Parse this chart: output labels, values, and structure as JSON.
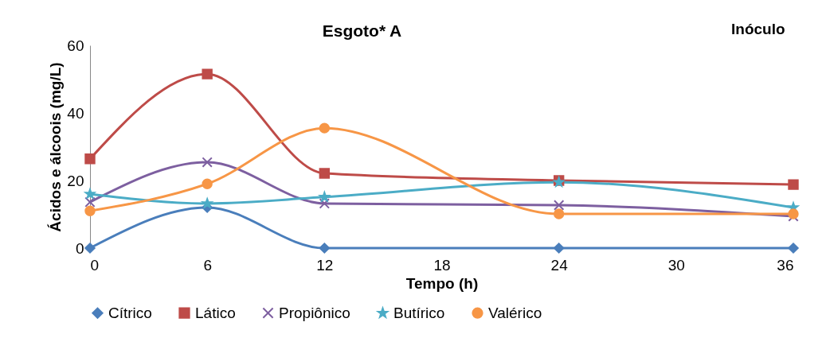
{
  "chart_data": {
    "type": "line",
    "title": "Esgoto* A",
    "xlabel": "Tempo (h)",
    "ylabel": "Ácidos e álcoois (mg/L)",
    "annotations": [
      "Inóculo"
    ],
    "x": [
      0,
      6,
      12,
      24,
      36
    ],
    "xlim": [
      0,
      36
    ],
    "xticks": [
      0,
      6,
      12,
      18,
      24,
      30,
      36
    ],
    "ylim": [
      0,
      60
    ],
    "yticks": [
      0,
      20,
      40,
      60
    ],
    "grid": false,
    "legend": "bottom",
    "series": [
      {
        "name": "Cítrico",
        "color": "#4a7ebb",
        "marker": "diamond",
        "values": [
          0,
          12,
          0,
          0,
          0
        ]
      },
      {
        "name": "Lático",
        "color": "#be4b48",
        "marker": "square",
        "values": [
          26.4,
          51.5,
          22.1,
          20,
          18.8
        ]
      },
      {
        "name": "Propiônico",
        "color": "#7d5fa0",
        "marker": "cross",
        "values": [
          13.6,
          25.4,
          13.2,
          12.7,
          9.4
        ]
      },
      {
        "name": "Butírico",
        "color": "#4bacc6",
        "marker": "star",
        "values": [
          16,
          13.2,
          15.1,
          19.5,
          12
        ]
      },
      {
        "name": "Valérico",
        "color": "#f79646",
        "marker": "circle",
        "values": [
          11,
          19,
          35.5,
          10.1,
          10.1
        ]
      }
    ]
  }
}
